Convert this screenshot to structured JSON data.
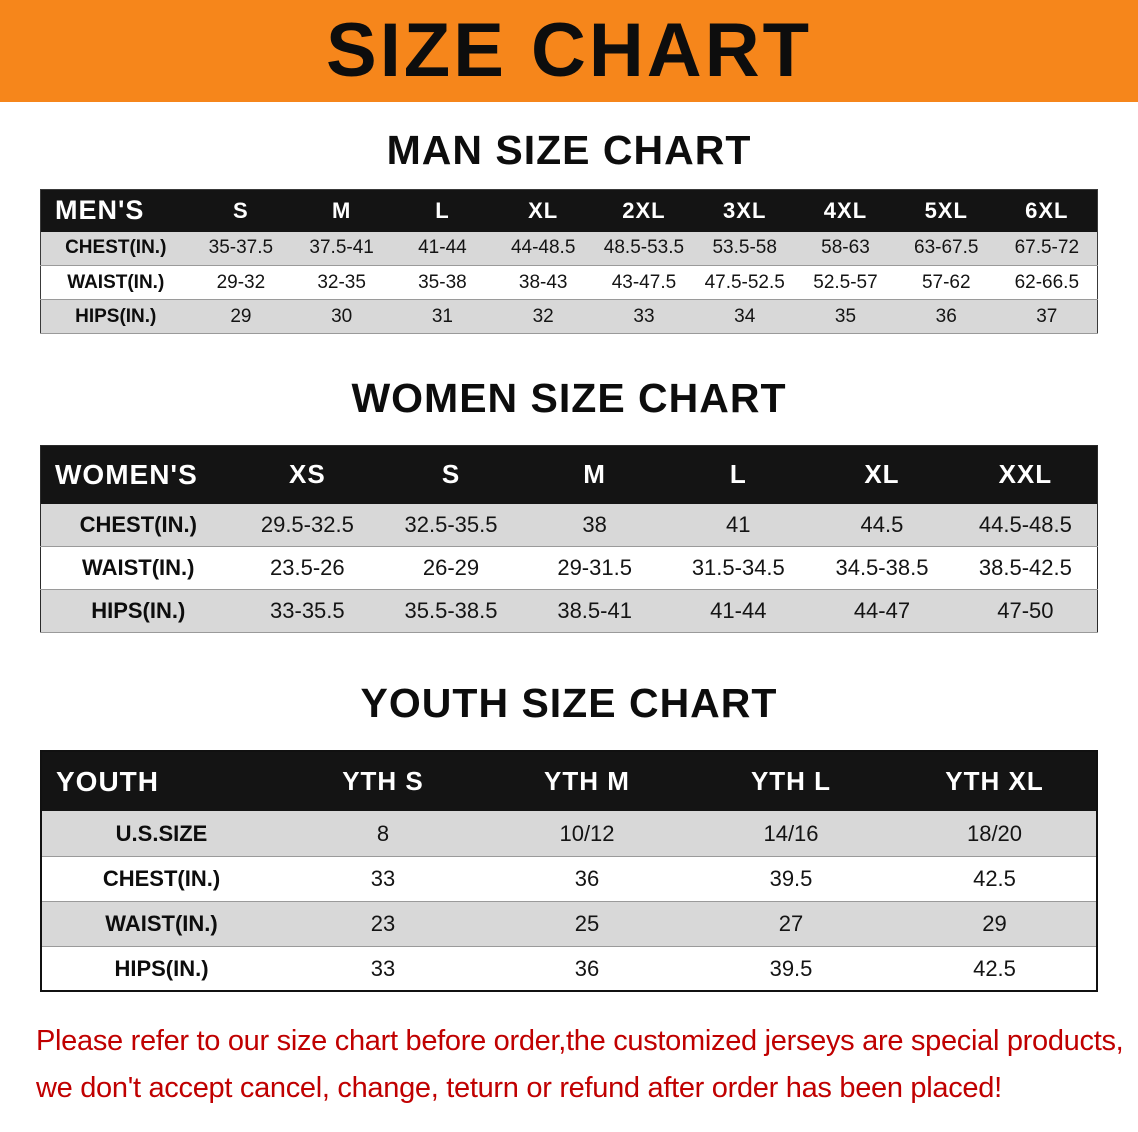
{
  "banner": {
    "title": "SIZE CHART",
    "bg_color": "#f6861b",
    "text_color": "#0d0d0d"
  },
  "colors": {
    "table_header_bg": "#141414",
    "table_header_text": "#ffffff",
    "row_stripe": "#d8d8d8",
    "disclaimer_text": "#c00000"
  },
  "sections": [
    {
      "heading": "MAN SIZE CHART",
      "table": {
        "label": "MEN'S",
        "columns": [
          "S",
          "M",
          "L",
          "XL",
          "2XL",
          "3XL",
          "4XL",
          "5XL",
          "6XL"
        ],
        "rows": [
          {
            "label": "CHEST(IN.)",
            "values": [
              "35-37.5",
              "37.5-41",
              "41-44",
              "44-48.5",
              "48.5-53.5",
              "53.5-58",
              "58-63",
              "63-67.5",
              "67.5-72"
            ]
          },
          {
            "label": "WAIST(IN.)",
            "values": [
              "29-32",
              "32-35",
              "35-38",
              "38-43",
              "43-47.5",
              "47.5-52.5",
              "52.5-57",
              "57-62",
              "62-66.5"
            ]
          },
          {
            "label": "HIPS(IN.)",
            "values": [
              "29",
              "30",
              "31",
              "32",
              "33",
              "34",
              "35",
              "36",
              "37"
            ]
          }
        ]
      }
    },
    {
      "heading": "WOMEN SIZE CHART",
      "table": {
        "label": "WOMEN'S",
        "columns": [
          "XS",
          "S",
          "M",
          "L",
          "XL",
          "XXL"
        ],
        "rows": [
          {
            "label": "CHEST(IN.)",
            "values": [
              "29.5-32.5",
              "32.5-35.5",
              "38",
              "41",
              "44.5",
              "44.5-48.5"
            ]
          },
          {
            "label": "WAIST(IN.)",
            "values": [
              "23.5-26",
              "26-29",
              "29-31.5",
              "31.5-34.5",
              "34.5-38.5",
              "38.5-42.5"
            ]
          },
          {
            "label": "HIPS(IN.)",
            "values": [
              "33-35.5",
              "35.5-38.5",
              "38.5-41",
              "41-44",
              "44-47",
              "47-50"
            ]
          }
        ]
      }
    },
    {
      "heading": "YOUTH SIZE CHART",
      "table": {
        "label": "YOUTH",
        "columns": [
          "YTH S",
          "YTH M",
          "YTH L",
          "YTH XL"
        ],
        "rows": [
          {
            "label": "U.S.SIZE",
            "values": [
              "8",
              "10/12",
              "14/16",
              "18/20"
            ]
          },
          {
            "label": "CHEST(IN.)",
            "values": [
              "33",
              "36",
              "39.5",
              "42.5"
            ]
          },
          {
            "label": "WAIST(IN.)",
            "values": [
              "23",
              "25",
              "27",
              "29"
            ]
          },
          {
            "label": "HIPS(IN.)",
            "values": [
              "33",
              "36",
              "39.5",
              "42.5"
            ]
          }
        ]
      }
    }
  ],
  "footer": {
    "line1": "Please refer to our size chart before order,the customized jerseys are special products,",
    "line2": "we don't accept cancel, change, teturn or refund after order has been placed!"
  }
}
